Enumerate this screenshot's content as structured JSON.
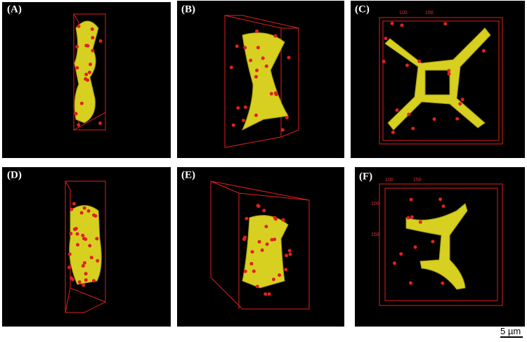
{
  "panels": [
    {
      "label": "(A)"
    },
    {
      "label": "(B)"
    },
    {
      "label": "(C)",
      "ticks": [
        "100",
        "150"
      ]
    },
    {
      "label": "(D)"
    },
    {
      "label": "(E)"
    },
    {
      "label": "(F)",
      "ticks": [
        "100",
        "150",
        "100",
        "150"
      ]
    }
  ],
  "scale_bar": {
    "label": "5 µm"
  }
}
